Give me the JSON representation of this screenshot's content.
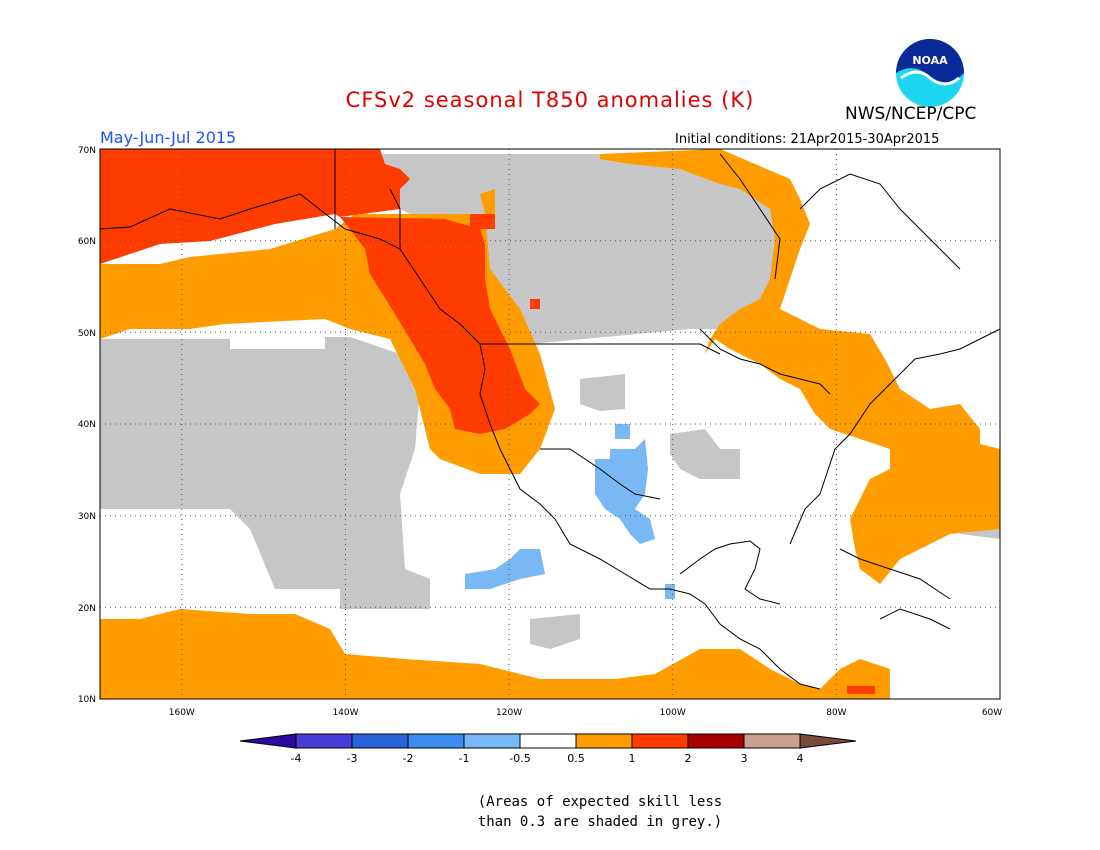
{
  "title": "CFSv2 seasonal T850 anomalies (K)",
  "agency": "NWS/NCEP/CPC",
  "logo_text": "NOAA",
  "period": "May-Jun-Jul 2015",
  "initial_conditions": "Initial conditions: 21Apr2015-30Apr2015",
  "note_line1": "(Areas of expected skill less",
  "note_line2": "than 0.3 are shaded in grey.)",
  "lat_labels": [
    "70N",
    "60N",
    "50N",
    "40N",
    "30N",
    "20N",
    "10N"
  ],
  "lon_labels": [
    "160W",
    "140W",
    "120W",
    "100W",
    "80W",
    "60W"
  ],
  "colorbar": {
    "labels": [
      "-4",
      "-3",
      "-2",
      "-1",
      "-0.5",
      "0.5",
      "1",
      "2",
      "3",
      "4"
    ],
    "colors": [
      "#2a0aa0",
      "#4a3ad8",
      "#2a64d8",
      "#3c8cf0",
      "#78b8f5",
      "#ffffff",
      "#ff9d00",
      "#ff3c00",
      "#a80000",
      "#c8a090",
      "#7a4a3a"
    ]
  },
  "colors": {
    "title": "#e00000",
    "period": "#1e50ff",
    "grey_low_skill": "#c6c6c6",
    "orange": "#ff9d00",
    "red": "#ff3c00",
    "light_blue": "#78b8f5"
  }
}
